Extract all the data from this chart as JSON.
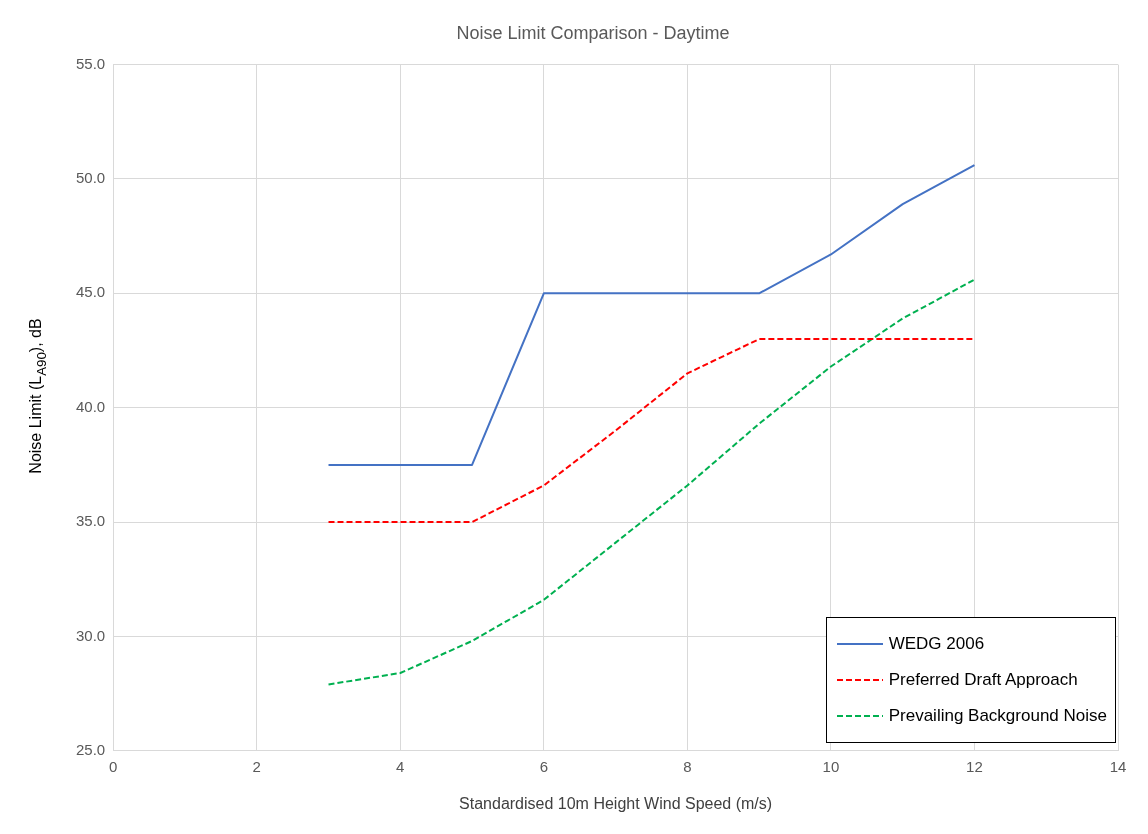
{
  "chart_data": {
    "type": "line",
    "title": "Noise Limit Comparison - Daytime",
    "xlabel": "Standardised 10m Height Wind Speed (m/s)",
    "ylabel": "Noise Limit (L$_{A90}$), dB",
    "x": [
      3,
      4,
      5,
      6,
      7,
      8,
      9,
      10,
      11,
      12
    ],
    "series": [
      {
        "name": "WEDG 2006",
        "color": "#4472c4",
        "line_style": "solid",
        "values": [
          37.5,
          37.5,
          37.5,
          45,
          45,
          45,
          45,
          46.7,
          48.9,
          50.6
        ]
      },
      {
        "name": "Preferred Draft Approach",
        "color": "#ff0000",
        "line_style": "dashed",
        "values": [
          35,
          35,
          35,
          36.6,
          39.0,
          41.5,
          43,
          43,
          43,
          43
        ]
      },
      {
        "name": "Prevailing Background Noise",
        "color": "#00b050",
        "line_style": "dashed",
        "values": [
          27.9,
          28.4,
          29.8,
          31.6,
          34.1,
          36.6,
          39.3,
          41.8,
          43.9,
          45.6
        ]
      }
    ],
    "xlim": [
      0,
      14
    ],
    "xticks": [
      0,
      2,
      4,
      6,
      8,
      10,
      12,
      14
    ],
    "ylim": [
      25,
      55
    ],
    "yticks": [
      {
        "value": 25,
        "label": "25.0"
      },
      {
        "value": 30,
        "label": "30.0"
      },
      {
        "value": 35,
        "label": "35.0"
      },
      {
        "value": 40,
        "label": "40.0"
      },
      {
        "value": 45,
        "label": "45.0"
      },
      {
        "value": 50,
        "label": "50.0"
      },
      {
        "value": 55,
        "label": "55.0"
      }
    ],
    "grid": true,
    "legend": "bottom right",
    "marker": "none"
  }
}
